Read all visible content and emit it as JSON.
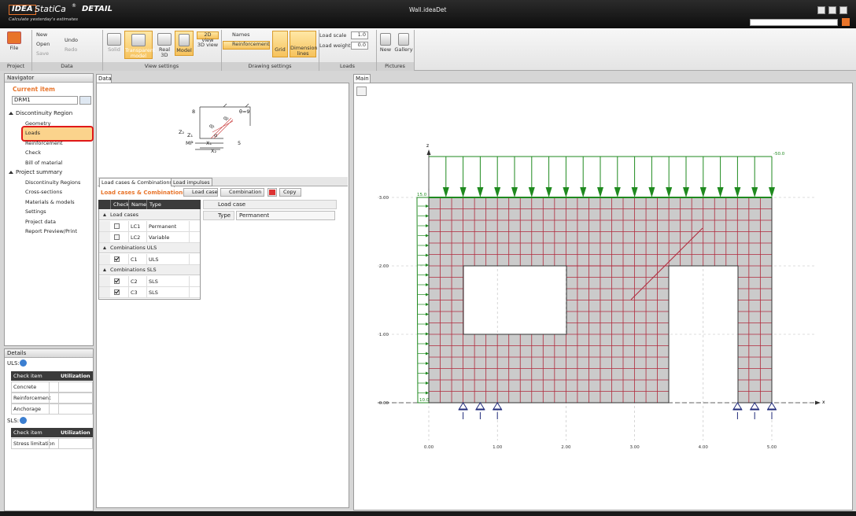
{
  "title_bar": {
    "logo": "IDEA",
    "product": "StatiCa",
    "reg": "®",
    "edition": "DETAIL",
    "tagline": "Calculate yesterday's estimates",
    "file_name": "Wall.ideaDet"
  },
  "ribbon": {
    "file": "File",
    "new": "New",
    "open": "Open",
    "save": "Save",
    "undo": "Undo",
    "redo": "Redo",
    "solid": "Solid",
    "transparent_model": "Transparent model",
    "real_3d": "Real 3D",
    "model": "Model",
    "view_2d": "2D view",
    "view_3d": "3D view",
    "names": "Names",
    "reinforcement": "Reinforcement",
    "grid": "Grid",
    "dimension_lines": "Dimension lines",
    "load_scale": "Load scale",
    "load_scale_value": "1.0",
    "load_weight": "Load weight",
    "load_weight_value": "0.0",
    "pictures_new": "New",
    "gallery": "Gallery",
    "group_labels": [
      "Project",
      "Data",
      "View settings",
      "Drawing settings",
      "Loads",
      "Pictures"
    ]
  },
  "navigator": {
    "title": "Navigator",
    "current_item": "Current item",
    "item": "DRM1",
    "tree": [
      {
        "label": "Discontinuity Region",
        "children": [
          "Geometry",
          "Loads",
          "Reinforcement",
          "Check",
          "Bill of material"
        ]
      },
      {
        "label": "Project summary",
        "children": [
          "Discontinuity Regions",
          "Cross-sections",
          "Materials & models",
          "Settings",
          "Project data",
          "Report Preview/Print"
        ]
      }
    ]
  },
  "details": {
    "title": "Details",
    "uls": "ULS:",
    "uls_header": [
      "Check item",
      "Utilization"
    ],
    "uls_rows": [
      "Concrete",
      "Reinforcement",
      "Anchorage"
    ],
    "sls": "SLS:",
    "sls_header": [
      "Check item",
      "Utilization"
    ],
    "sls_rows": [
      "Stress limitation"
    ]
  },
  "data_panel": {
    "tab": "Data",
    "sketch_labels": [
      "8",
      "θ=9",
      "q₁",
      "q₂",
      "Z₂",
      "Z₁",
      "MP",
      "X₁",
      "X₂",
      "α",
      "5"
    ],
    "tabs": [
      "Load cases & Combinations",
      "Load impulses"
    ],
    "heading": "Load cases & Combinations",
    "buttons": [
      "Load case",
      "Combination",
      "Copy"
    ],
    "table_header": [
      "Check",
      "Name",
      "Type"
    ],
    "groups": [
      {
        "label": "Load cases",
        "rows": [
          {
            "checked": false,
            "name": "LC1",
            "type": "Permanent"
          },
          {
            "checked": false,
            "name": "LC2",
            "type": "Variable"
          }
        ]
      },
      {
        "label": "Combinations ULS",
        "rows": [
          {
            "checked": true,
            "name": "C1",
            "type": "ULS"
          }
        ]
      },
      {
        "label": "Combinations SLS",
        "rows": [
          {
            "checked": true,
            "name": "C2",
            "type": "SLS"
          },
          {
            "checked": true,
            "name": "C3",
            "type": "SLS"
          }
        ]
      }
    ],
    "properties": {
      "header": "Load case",
      "type_label": "Type",
      "type_value": "Permanent"
    }
  },
  "main_view": {
    "tab": "Main",
    "z_axis": "z",
    "x_axis": "x",
    "x_ticks": [
      "0.00",
      "1.00",
      "2.00",
      "3.00",
      "4.00",
      "5.00"
    ],
    "y_ticks": [
      "0.00",
      "1.00",
      "2.00",
      "3.00"
    ],
    "top_load": "-50.0",
    "left_load_top": "15.0",
    "left_load_bottom": "10.0"
  }
}
